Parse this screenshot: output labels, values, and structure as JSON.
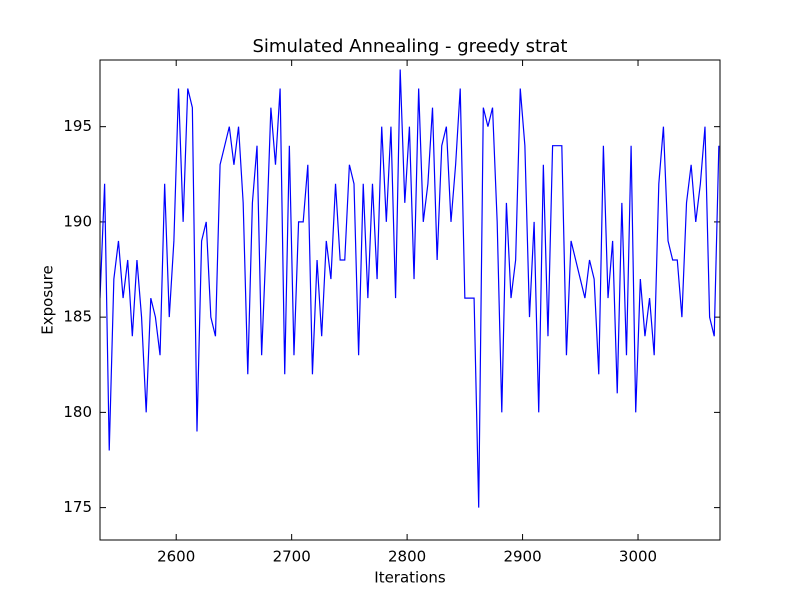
{
  "chart_data": {
    "type": "line",
    "title": "Simulated Annealing - greedy strat",
    "x_label": "Iterations",
    "y_label": "Exposure",
    "x": [
      2534,
      2538,
      2542,
      2546,
      2550,
      2554,
      2558,
      2562,
      2566,
      2570,
      2574,
      2578,
      2582,
      2586,
      2590,
      2594,
      2598,
      2602,
      2606,
      2610,
      2614,
      2618,
      2622,
      2626,
      2630,
      2634,
      2638,
      2642,
      2646,
      2650,
      2654,
      2658,
      2662,
      2666,
      2670,
      2674,
      2678,
      2682,
      2686,
      2690,
      2694,
      2698,
      2702,
      2706,
      2710,
      2714,
      2718,
      2722,
      2726,
      2730,
      2734,
      2738,
      2742,
      2746,
      2750,
      2754,
      2758,
      2762,
      2766,
      2770,
      2774,
      2778,
      2782,
      2786,
      2790,
      2794,
      2798,
      2802,
      2806,
      2810,
      2814,
      2818,
      2822,
      2826,
      2830,
      2834,
      2838,
      2842,
      2846,
      2850,
      2854,
      2858,
      2862,
      2866,
      2870,
      2874,
      2878,
      2882,
      2886,
      2890,
      2894,
      2898,
      2902,
      2906,
      2910,
      2914,
      2918,
      2922,
      2926,
      2930,
      2934,
      2938,
      2942,
      2946,
      2950,
      2954,
      2958,
      2962,
      2966,
      2970,
      2974,
      2978,
      2982,
      2986,
      2990,
      2994,
      2998,
      3002,
      3006,
      3010,
      3014,
      3018,
      3022,
      3026,
      3030,
      3034,
      3038,
      3042,
      3046,
      3050,
      3054,
      3058,
      3062,
      3066,
      3070
    ],
    "series": [
      {
        "name": "Exposure",
        "color": "#0000ff",
        "values": [
          186,
          192,
          178,
          187,
          189,
          186,
          188,
          184,
          188,
          185,
          180,
          186,
          185,
          183,
          192,
          185,
          189,
          197,
          190,
          197,
          196,
          179,
          189,
          190,
          185,
          184,
          193,
          194,
          195,
          193,
          195,
          191,
          182,
          191,
          194,
          183,
          189,
          196,
          193,
          197,
          182,
          194,
          183,
          190,
          190,
          193,
          182,
          188,
          184,
          189,
          187,
          192,
          188,
          188,
          193,
          192,
          183,
          192,
          186,
          192,
          187,
          195,
          190,
          195,
          186,
          198,
          191,
          195,
          187,
          197,
          190,
          192,
          196,
          188,
          194,
          195,
          190,
          193,
          197,
          186,
          186,
          186,
          175,
          196,
          195,
          196,
          190,
          180,
          191,
          186,
          188,
          197,
          194,
          185,
          190,
          180,
          193,
          184,
          194,
          194,
          194,
          183,
          189,
          188,
          187,
          186,
          188,
          187,
          182,
          194,
          186,
          189,
          181,
          191,
          183,
          194,
          180,
          187,
          184,
          186,
          183,
          192,
          195,
          189,
          188,
          188,
          185,
          191,
          193,
          190,
          192,
          195,
          185,
          184,
          194
        ]
      }
    ],
    "xlim": [
      2534,
      3071
    ],
    "ylim": [
      173.3,
      198.5
    ],
    "xticks": [
      2600,
      2700,
      2800,
      2900,
      3000
    ],
    "yticks": [
      175,
      180,
      185,
      190,
      195
    ]
  }
}
